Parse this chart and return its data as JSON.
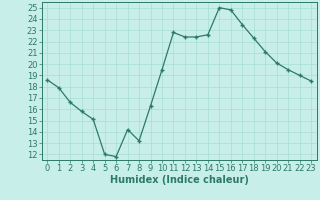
{
  "x": [
    0,
    1,
    2,
    3,
    4,
    5,
    6,
    7,
    8,
    9,
    10,
    11,
    12,
    13,
    14,
    15,
    16,
    17,
    18,
    19,
    20,
    21,
    22,
    23
  ],
  "y": [
    18.6,
    17.9,
    16.6,
    15.8,
    15.1,
    12.0,
    11.8,
    14.2,
    13.2,
    16.3,
    19.5,
    22.8,
    22.4,
    22.4,
    22.6,
    25.0,
    24.8,
    23.5,
    22.3,
    21.1,
    20.1,
    19.5,
    19.0,
    18.5
  ],
  "line_color": "#2d7a6a",
  "marker_color": "#2d7a6a",
  "bg_color": "#c8eeea",
  "grid_color": "#a8dcd6",
  "xlabel": "Humidex (Indice chaleur)",
  "ylabel_ticks": [
    12,
    13,
    14,
    15,
    16,
    17,
    18,
    19,
    20,
    21,
    22,
    23,
    24,
    25
  ],
  "xlim": [
    -0.5,
    23.5
  ],
  "ylim": [
    11.5,
    25.5
  ],
  "xticks": [
    0,
    1,
    2,
    3,
    4,
    5,
    6,
    7,
    8,
    9,
    10,
    11,
    12,
    13,
    14,
    15,
    16,
    17,
    18,
    19,
    20,
    21,
    22,
    23
  ],
  "xtick_labels": [
    "0",
    "1",
    "2",
    "3",
    "4",
    "5",
    "6",
    "7",
    "8",
    "9",
    "10",
    "11",
    "12",
    "13",
    "14",
    "15",
    "16",
    "17",
    "18",
    "19",
    "20",
    "21",
    "22",
    "23"
  ],
  "font_size_xlabel": 7.0,
  "font_size_ticks": 6.0
}
